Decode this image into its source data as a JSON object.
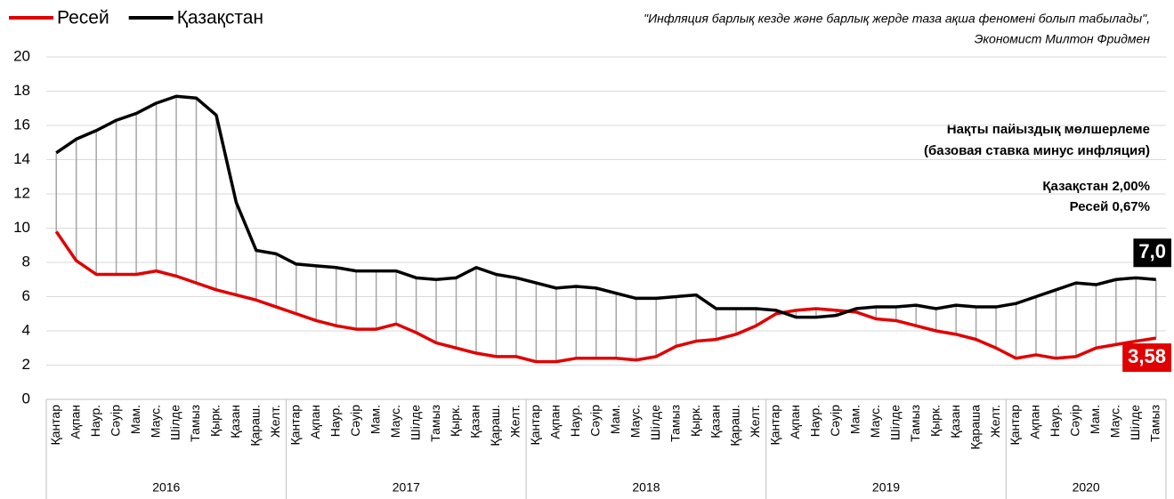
{
  "chart_data": {
    "type": "line",
    "quote": [
      "\"Инфляция барлық кезде және барлық жерде таза ақша феномені болып табылады\",",
      "Экономист Милтон Фридмен"
    ],
    "annotation": [
      "Нақты пайыздық мөлшерлеме",
      "(базовая ставка минус инфляция)",
      "Қазақстан 2,00%",
      "Ресей 0,67%"
    ],
    "groups": [
      {
        "name": "2016",
        "categories": [
          "Қантар",
          "Ақпан",
          "Наур.",
          "Сәуір",
          "Мам.",
          "Маус.",
          "Шілде",
          "Тамыз",
          "Қырк.",
          "Қазан",
          "Қараш.",
          "Желт."
        ]
      },
      {
        "name": "2017",
        "categories": [
          "Қантар",
          "Ақпан",
          "Наур.",
          "Сәуір",
          "Мам.",
          "Маус.",
          "Шілде",
          "Тамыз",
          "Қырк.",
          "Қазан",
          "Қараш.",
          "Желт."
        ]
      },
      {
        "name": "2018",
        "categories": [
          "Қантар",
          "Ақпан",
          "Наур.",
          "Сәуір",
          "Мам.",
          "Маус.",
          "Шілде",
          "Тамыз",
          "Қырк.",
          "Қазан",
          "Қараш.",
          "Желт."
        ]
      },
      {
        "name": "2019",
        "categories": [
          "Қантар",
          "Ақпан",
          "Наур.",
          "Сәуір",
          "Мам.",
          "Маус.",
          "Шілде",
          "Тамыз",
          "Қырк.",
          "Қазан",
          "Қараша",
          "Желт."
        ]
      },
      {
        "name": "2020",
        "categories": [
          "Қантар",
          "Ақпан",
          "Наур.",
          "Сәуір",
          "Мам.",
          "Маус.",
          "Шілде",
          "Тамыз"
        ]
      }
    ],
    "series": [
      {
        "name": "Ресей",
        "color": "#e00000",
        "values": [
          9.8,
          8.1,
          7.3,
          7.3,
          7.3,
          7.5,
          7.2,
          6.8,
          6.4,
          6.1,
          5.8,
          5.4,
          5.0,
          4.6,
          4.3,
          4.1,
          4.1,
          4.4,
          3.9,
          3.3,
          3.0,
          2.7,
          2.5,
          2.5,
          2.2,
          2.2,
          2.4,
          2.4,
          2.4,
          2.3,
          2.5,
          3.1,
          3.4,
          3.5,
          3.8,
          4.3,
          5.0,
          5.2,
          5.3,
          5.2,
          5.1,
          4.7,
          4.6,
          4.3,
          4.0,
          3.8,
          3.5,
          3.0,
          2.4,
          2.6,
          2.4,
          2.5,
          3.0,
          3.2,
          3.4,
          3.58
        ],
        "value_labels": [
          null,
          null,
          null,
          null,
          null,
          null,
          null,
          null,
          null,
          null,
          null,
          null,
          null,
          null,
          null,
          null,
          null,
          null,
          null,
          null,
          null,
          null,
          null,
          null,
          null,
          null,
          null,
          null,
          null,
          null,
          null,
          null,
          null,
          null,
          null,
          null,
          null,
          null,
          null,
          null,
          null,
          null,
          null,
          null,
          null,
          null,
          null,
          null,
          null,
          null,
          null,
          null,
          null,
          null,
          null,
          "3,58"
        ]
      },
      {
        "name": "Қазақстан",
        "color": "#000000",
        "values": [
          14.4,
          15.2,
          15.7,
          16.3,
          16.7,
          17.3,
          17.7,
          17.6,
          16.6,
          11.5,
          8.7,
          8.5,
          7.9,
          7.8,
          7.7,
          7.5,
          7.5,
          7.5,
          7.1,
          7.0,
          7.1,
          7.7,
          7.3,
          7.1,
          6.8,
          6.5,
          6.6,
          6.5,
          6.2,
          5.9,
          5.9,
          6.0,
          6.1,
          5.3,
          5.3,
          5.3,
          5.2,
          4.8,
          4.8,
          4.9,
          5.3,
          5.4,
          5.4,
          5.5,
          5.3,
          5.5,
          5.4,
          5.4,
          5.6,
          6.0,
          6.4,
          6.8,
          6.7,
          7.0,
          7.1,
          7.0
        ],
        "value_labels": [
          null,
          null,
          null,
          null,
          null,
          null,
          null,
          null,
          null,
          null,
          null,
          null,
          null,
          null,
          null,
          null,
          null,
          null,
          null,
          null,
          null,
          null,
          null,
          null,
          null,
          null,
          null,
          null,
          null,
          null,
          null,
          null,
          null,
          null,
          null,
          null,
          null,
          null,
          null,
          null,
          null,
          null,
          null,
          null,
          null,
          null,
          null,
          null,
          null,
          null,
          null,
          null,
          null,
          null,
          null,
          "7,0"
        ]
      }
    ],
    "ylim": [
      0,
      20
    ],
    "yticks": [
      0,
      2,
      4,
      6,
      8,
      10,
      12,
      14,
      16,
      18,
      20
    ],
    "grid": true
  }
}
